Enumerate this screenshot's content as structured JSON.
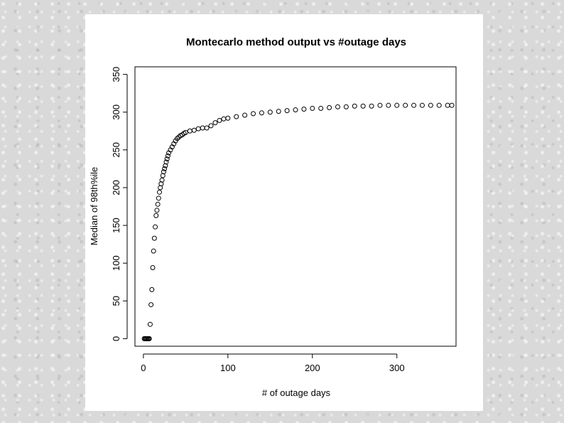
{
  "chart_data": {
    "type": "scatter",
    "title": "Montecarlo method output vs #outage days",
    "xlabel": "# of outage days",
    "ylabel": "Median of 98th%ile",
    "xlim": [
      -10,
      370
    ],
    "ylim": [
      -10,
      360
    ],
    "x_ticks": [
      0,
      100,
      200,
      300
    ],
    "y_ticks": [
      0,
      50,
      100,
      150,
      200,
      250,
      300,
      350
    ],
    "grid": false,
    "legend": "none",
    "marker": "open-circle",
    "series": [
      {
        "x": [
          1,
          2,
          3,
          4,
          5,
          6,
          7,
          8,
          9,
          10,
          11,
          12,
          13,
          14,
          15,
          16,
          17,
          18,
          19,
          20,
          21,
          22,
          23,
          24,
          25,
          26,
          27,
          28,
          29,
          30,
          32,
          34,
          36,
          38,
          40,
          42,
          44,
          46,
          48,
          50,
          55,
          60,
          65,
          70,
          75,
          80,
          85,
          90,
          95,
          100,
          110,
          120,
          130,
          140,
          150,
          160,
          170,
          180,
          190,
          200,
          210,
          220,
          230,
          240,
          250,
          260,
          270,
          280,
          290,
          300,
          310,
          320,
          330,
          340,
          350,
          360,
          365
        ],
        "y": [
          0,
          0,
          0,
          0,
          0,
          0,
          0,
          19,
          45,
          65,
          94,
          116,
          133,
          148,
          163,
          170,
          178,
          186,
          194,
          200,
          205,
          210,
          216,
          221,
          225,
          229,
          234,
          238,
          242,
          246,
          250,
          254,
          258,
          262,
          265,
          267,
          269,
          270,
          272,
          273,
          275,
          276,
          278,
          279,
          279,
          282,
          286,
          289,
          291,
          292,
          294,
          296,
          298,
          299,
          300,
          301,
          302,
          303,
          304,
          305,
          305,
          306,
          307,
          307,
          308,
          308,
          308,
          309,
          309,
          309,
          309,
          309,
          309,
          309,
          309,
          309,
          309
        ]
      }
    ]
  }
}
